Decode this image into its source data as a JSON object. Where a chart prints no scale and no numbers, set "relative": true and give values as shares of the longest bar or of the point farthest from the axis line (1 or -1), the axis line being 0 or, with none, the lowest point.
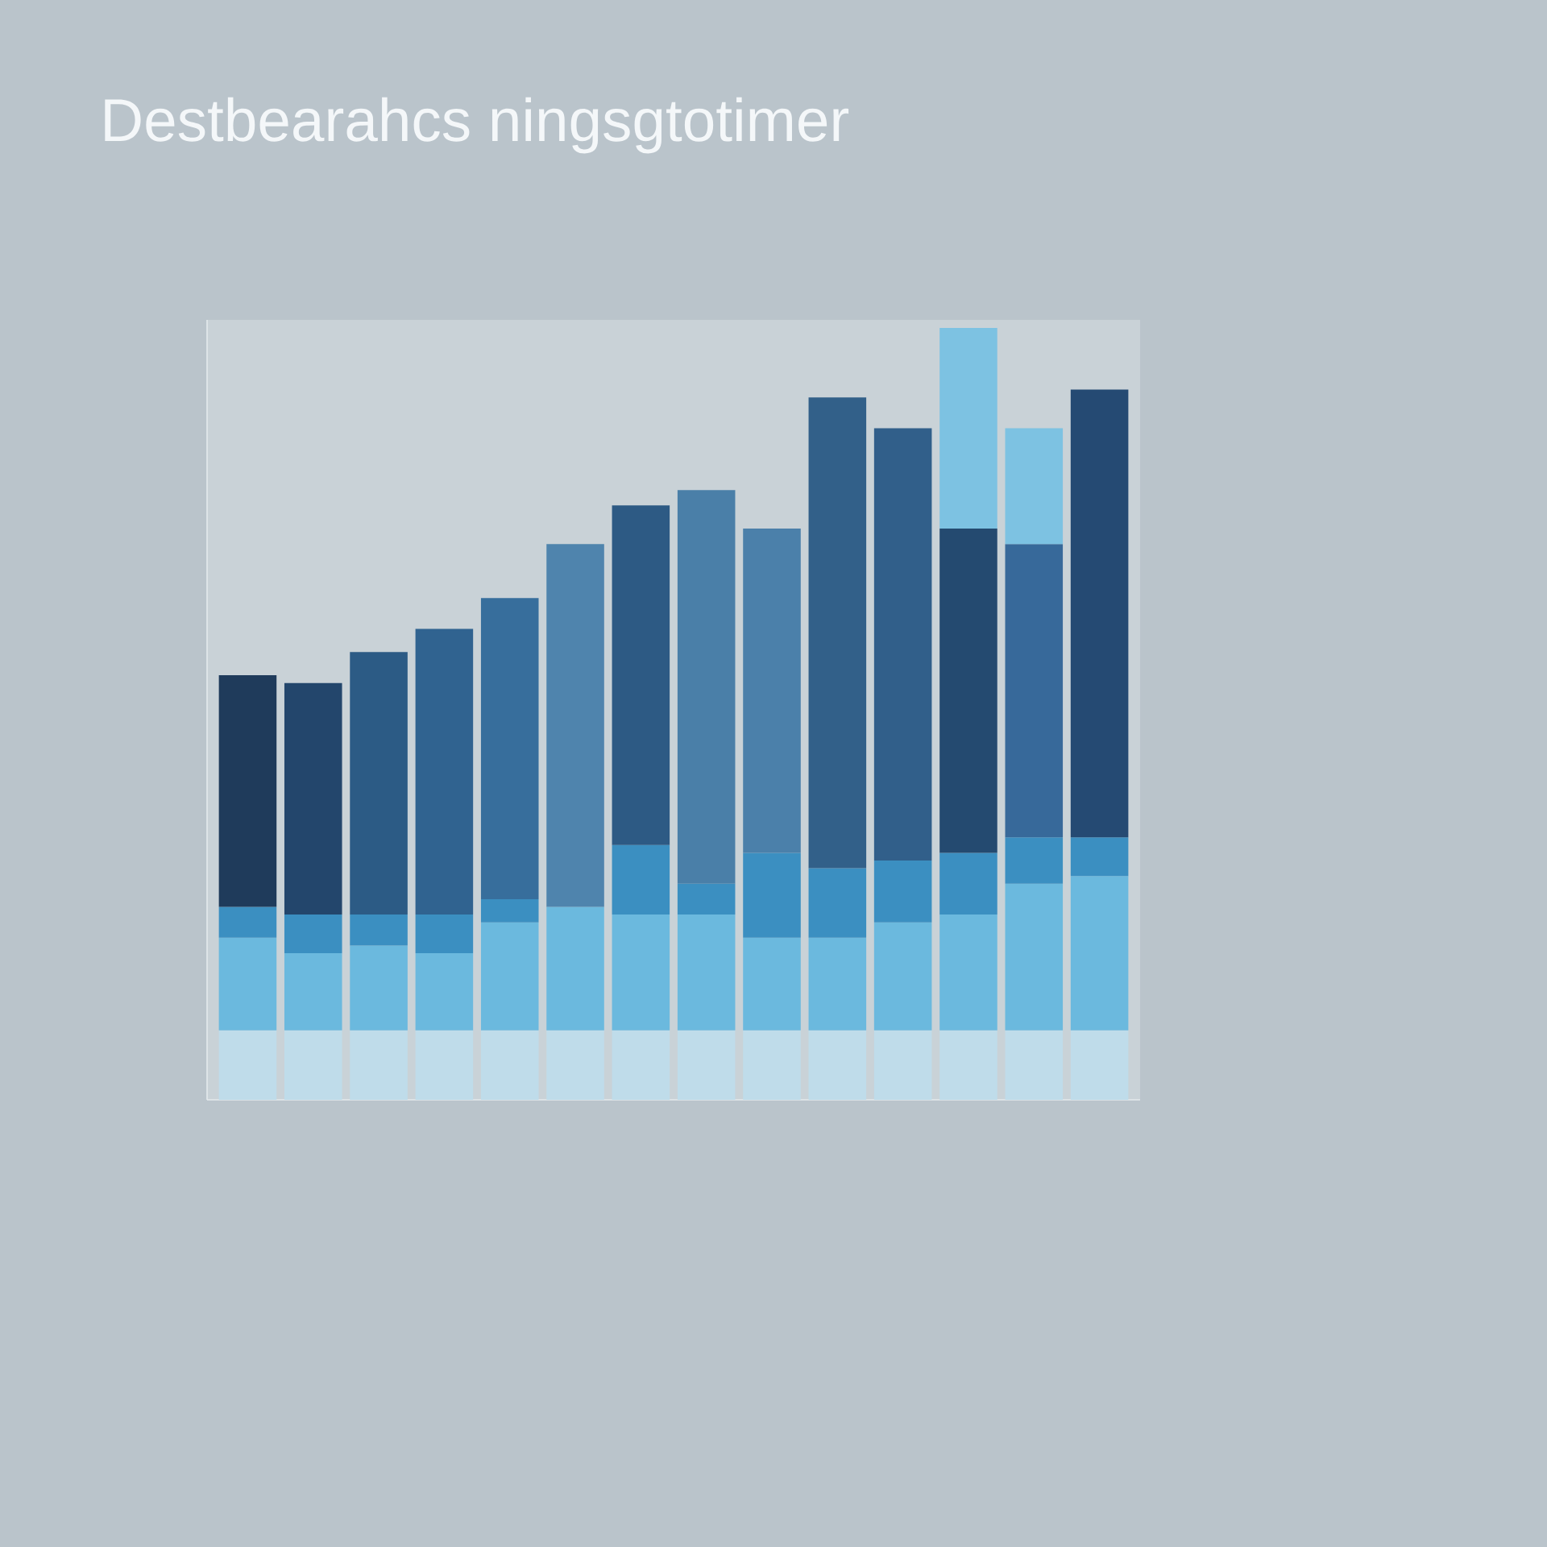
{
  "chart_data": {
    "type": "bar",
    "title": "Destbearahcs ningsgtotimer",
    "stacked": true,
    "relative": true,
    "categories": [
      null,
      null,
      null,
      null,
      null,
      null,
      null,
      null,
      null,
      null,
      null,
      null,
      null,
      null
    ],
    "series": [
      {
        "color": "#bfdcea",
        "values": [
          0.09,
          0.09,
          0.09,
          0.09,
          0.09,
          0.09,
          0.09,
          0.09,
          0.09,
          0.09,
          0.09,
          0.09,
          0.09,
          0.09
        ]
      },
      {
        "color": "#6bb9de",
        "values": [
          0.12,
          0.1,
          0.11,
          0.1,
          0.14,
          0.16,
          0.15,
          0.15,
          0.12,
          0.12,
          0.14,
          0.15,
          0.19,
          0.2
        ]
      },
      {
        "color": "#3b8fc1",
        "values": [
          0.04,
          0.05,
          0.04,
          0.05,
          0.03,
          null,
          0.09,
          0.04,
          0.11,
          0.09,
          0.08,
          0.08,
          0.06,
          0.05
        ]
      },
      {
        "colors": [
          "#1f3b5b",
          "#23466c",
          "#2c5b85",
          "#306390",
          "#376e9c",
          "#4f84ad",
          "#2d5a84",
          "#4a7fa8",
          "#4b80aa",
          "#326089",
          "#315f8a",
          "#244a70",
          "#37699a",
          "#254a73"
        ],
        "values": [
          0.3,
          0.3,
          0.34,
          0.37,
          0.39,
          0.47,
          0.44,
          0.51,
          0.42,
          0.61,
          0.56,
          0.42,
          0.38,
          0.58
        ]
      },
      {
        "color": "#7dc2e2",
        "values": [
          null,
          null,
          null,
          null,
          null,
          null,
          null,
          null,
          null,
          null,
          null,
          0.26,
          0.15,
          null
        ]
      }
    ]
  }
}
